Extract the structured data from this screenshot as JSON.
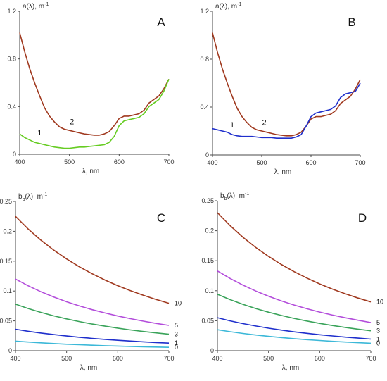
{
  "chart_data": [
    {
      "panel": "A",
      "type": "line",
      "ylabel": "a(λ), m",
      "ylabel_sup": "-1",
      "xlabel": "λ, nm",
      "xlim": [
        400,
        700
      ],
      "ylim": [
        0,
        1.2
      ],
      "xticks": [
        "400",
        "500",
        "600",
        "700"
      ],
      "yticks": [
        "0",
        "0.4",
        "0.8",
        "1.2"
      ],
      "x": [
        400,
        410,
        420,
        430,
        440,
        450,
        460,
        470,
        480,
        490,
        500,
        510,
        520,
        530,
        540,
        550,
        560,
        570,
        580,
        590,
        600,
        610,
        620,
        630,
        640,
        650,
        660,
        670,
        680,
        690,
        700
      ],
      "series": [
        {
          "name": "2",
          "color": "#a0391f",
          "values": [
            1.02,
            0.86,
            0.72,
            0.6,
            0.49,
            0.39,
            0.32,
            0.27,
            0.23,
            0.21,
            0.2,
            0.19,
            0.18,
            0.17,
            0.165,
            0.16,
            0.16,
            0.17,
            0.19,
            0.24,
            0.3,
            0.32,
            0.32,
            0.33,
            0.34,
            0.37,
            0.43,
            0.46,
            0.49,
            0.55,
            0.63
          ]
        },
        {
          "name": "1",
          "color": "#66cc22",
          "values": [
            0.17,
            0.14,
            0.12,
            0.1,
            0.09,
            0.08,
            0.07,
            0.06,
            0.055,
            0.05,
            0.05,
            0.055,
            0.06,
            0.06,
            0.065,
            0.07,
            0.075,
            0.08,
            0.1,
            0.15,
            0.24,
            0.28,
            0.29,
            0.3,
            0.31,
            0.34,
            0.4,
            0.43,
            0.46,
            0.53,
            0.63
          ]
        }
      ],
      "labels": [
        {
          "text": "2",
          "x": 505,
          "y": 0.25
        },
        {
          "text": "1",
          "x": 440,
          "y": 0.16
        }
      ]
    },
    {
      "panel": "B",
      "type": "line",
      "ylabel": "a(λ), m",
      "ylabel_sup": "-1",
      "xlabel": "λ, nm",
      "xlim": [
        400,
        700
      ],
      "ylim": [
        0,
        1.2
      ],
      "xticks": [
        "400",
        "500",
        "600",
        "700"
      ],
      "yticks": [
        "0",
        "0.4",
        "0.8",
        "1.2"
      ],
      "x": [
        400,
        410,
        420,
        430,
        440,
        450,
        460,
        470,
        480,
        490,
        500,
        510,
        520,
        530,
        540,
        550,
        560,
        570,
        580,
        590,
        600,
        610,
        620,
        630,
        640,
        650,
        660,
        670,
        680,
        690,
        700
      ],
      "series": [
        {
          "name": "2",
          "color": "#a0391f",
          "values": [
            1.02,
            0.86,
            0.72,
            0.6,
            0.49,
            0.39,
            0.32,
            0.27,
            0.23,
            0.21,
            0.2,
            0.19,
            0.18,
            0.17,
            0.165,
            0.16,
            0.16,
            0.17,
            0.19,
            0.24,
            0.3,
            0.32,
            0.32,
            0.33,
            0.34,
            0.37,
            0.43,
            0.46,
            0.49,
            0.55,
            0.63
          ]
        },
        {
          "name": "1",
          "color": "#1f2fcc",
          "values": [
            0.22,
            0.21,
            0.2,
            0.19,
            0.17,
            0.16,
            0.155,
            0.155,
            0.155,
            0.15,
            0.145,
            0.145,
            0.145,
            0.14,
            0.14,
            0.14,
            0.14,
            0.15,
            0.17,
            0.24,
            0.32,
            0.35,
            0.36,
            0.37,
            0.38,
            0.41,
            0.48,
            0.51,
            0.52,
            0.53,
            0.6
          ]
        }
      ],
      "labels": [
        {
          "text": "2",
          "x": 505,
          "y": 0.25
        },
        {
          "text": "1",
          "x": 440,
          "y": 0.23
        }
      ]
    },
    {
      "panel": "C",
      "type": "line",
      "ylabel": "b",
      "ylabel_sub": "b",
      "ylabel_rest": "(λ), m",
      "ylabel_sup": "-1",
      "xlabel": "λ, nm",
      "xlim": [
        400,
        700
      ],
      "ylim": [
        0,
        0.25
      ],
      "xticks": [
        "400",
        "500",
        "600",
        "700"
      ],
      "yticks": [
        "0",
        "0.05",
        "0.1",
        "0.15",
        "0.2",
        "0.25"
      ],
      "x": [
        400,
        425,
        450,
        475,
        500,
        525,
        550,
        575,
        600,
        625,
        650,
        675,
        700
      ],
      "series": [
        {
          "name": "10",
          "color": "#a0391f",
          "values": [
            0.225,
            0.2037,
            0.185,
            0.1684,
            0.1537,
            0.1406,
            0.1289,
            0.1184,
            0.109,
            0.1005,
            0.0928,
            0.0859,
            0.0795
          ]
        },
        {
          "name": "5",
          "color": "#b34ddb",
          "values": [
            0.12,
            0.1087,
            0.0987,
            0.0898,
            0.082,
            0.075,
            0.0688,
            0.0632,
            0.0581,
            0.0536,
            0.0495,
            0.0458,
            0.0424
          ]
        },
        {
          "name": "3",
          "color": "#3aa35a",
          "values": [
            0.078,
            0.0706,
            0.0641,
            0.0584,
            0.0533,
            0.0488,
            0.0447,
            0.0411,
            0.0378,
            0.0348,
            0.0322,
            0.0298,
            0.0276
          ]
        },
        {
          "name": "1",
          "color": "#1f2fcc",
          "values": [
            0.036,
            0.0326,
            0.0296,
            0.027,
            0.0246,
            0.0225,
            0.0206,
            0.019,
            0.0174,
            0.0161,
            0.0148,
            0.0137,
            0.0127
          ]
        },
        {
          "name": "0",
          "color": "#3cb8d8",
          "values": [
            0.016,
            0.0145,
            0.0132,
            0.012,
            0.0109,
            0.01,
            0.0092,
            0.0084,
            0.0078,
            0.0071,
            0.0066,
            0.0061,
            0.0057
          ]
        }
      ]
    },
    {
      "panel": "D",
      "type": "line",
      "ylabel": "b",
      "ylabel_sub": "b",
      "ylabel_rest": "(λ), m",
      "ylabel_sup": "-1",
      "xlabel": "λ, nm",
      "xlim": [
        400,
        700
      ],
      "ylim": [
        0,
        0.25
      ],
      "xticks": [
        "400",
        "500",
        "600",
        "700"
      ],
      "yticks": [
        "0",
        "0.05",
        "0.1",
        "0.15",
        "0.2",
        "0.25"
      ],
      "x": [
        400,
        425,
        450,
        475,
        500,
        525,
        550,
        575,
        600,
        625,
        650,
        675,
        700
      ],
      "series": [
        {
          "name": "10",
          "color": "#a0391f",
          "values": [
            0.23,
            0.2083,
            0.1891,
            0.1721,
            0.1572,
            0.1438,
            0.1318,
            0.1211,
            0.1114,
            0.1027,
            0.0949,
            0.0878,
            0.0813
          ]
        },
        {
          "name": "5",
          "color": "#b34ddb",
          "values": [
            0.133,
            0.1204,
            0.1094,
            0.0995,
            0.0909,
            0.0831,
            0.0762,
            0.07,
            0.0644,
            0.0594,
            0.0549,
            0.0508,
            0.047
          ]
        },
        {
          "name": "3",
          "color": "#3aa35a",
          "values": [
            0.094,
            0.0851,
            0.0773,
            0.0703,
            0.0642,
            0.0588,
            0.0539,
            0.0495,
            0.0455,
            0.042,
            0.0388,
            0.0359,
            0.0332
          ]
        },
        {
          "name": "1",
          "color": "#1f2fcc",
          "values": [
            0.055,
            0.0498,
            0.0452,
            0.0412,
            0.0376,
            0.0344,
            0.0315,
            0.029,
            0.0266,
            0.0246,
            0.0227,
            0.021,
            0.0194
          ]
        },
        {
          "name": "0",
          "color": "#3cb8d8",
          "values": [
            0.035,
            0.0317,
            0.0288,
            0.0262,
            0.0239,
            0.0219,
            0.0201,
            0.0184,
            0.017,
            0.0156,
            0.0144,
            0.0134,
            0.0124
          ]
        }
      ]
    }
  ]
}
